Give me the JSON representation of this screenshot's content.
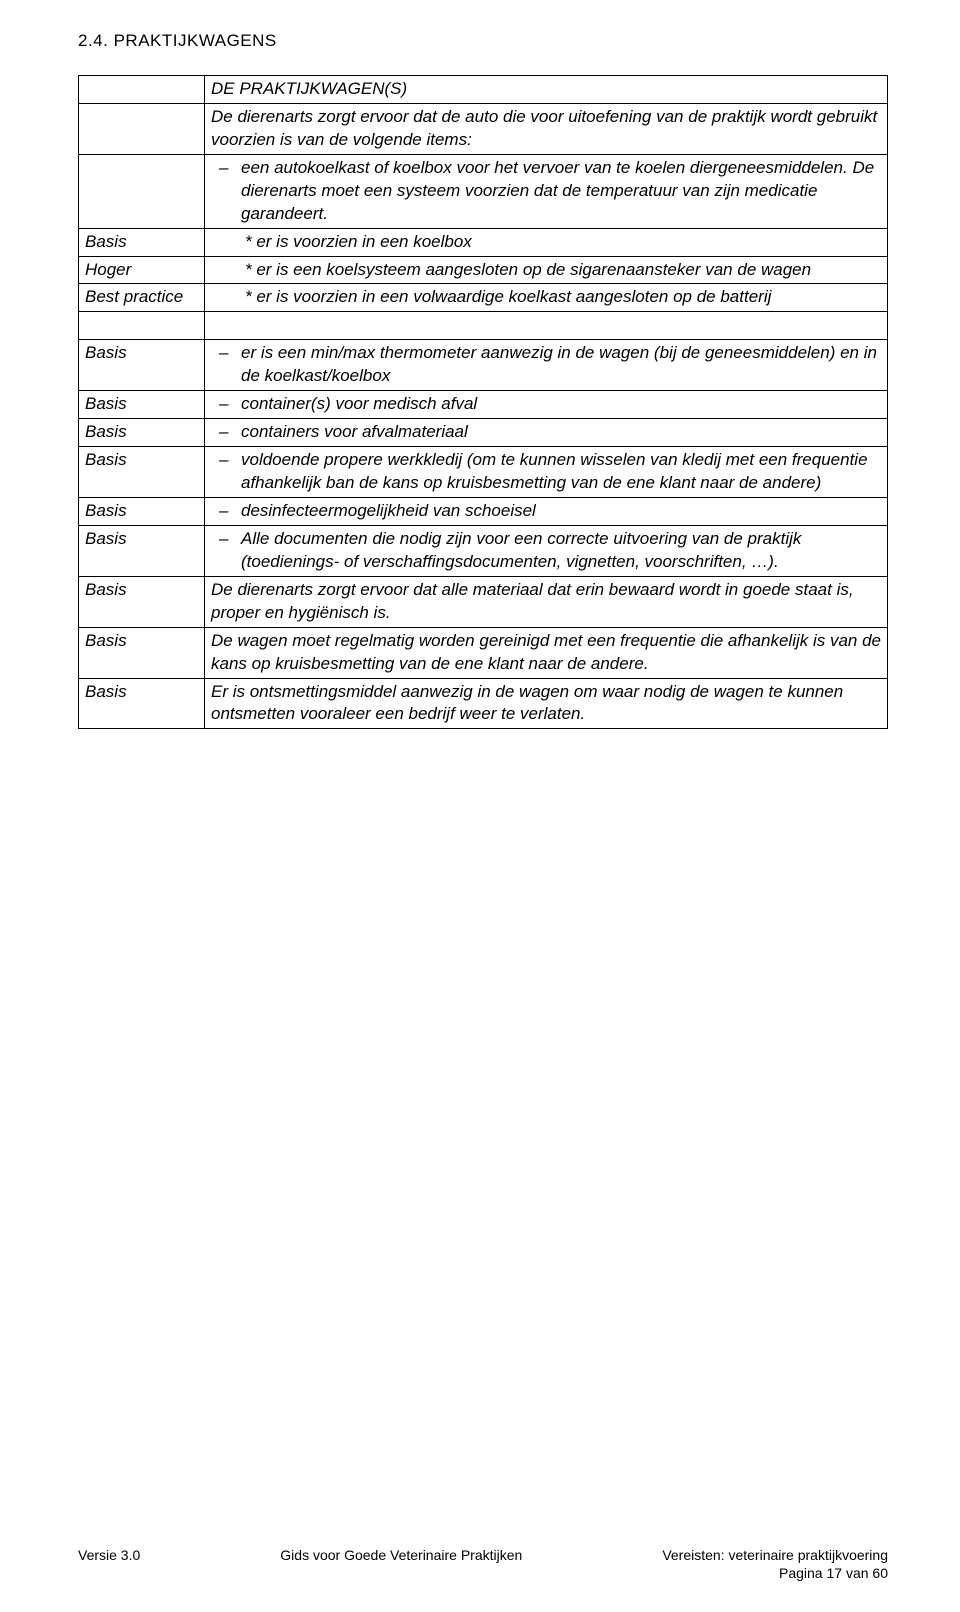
{
  "heading": "2.4. PRAKTIJKWAGENS",
  "rows": [
    {
      "label": "",
      "content": "DE PRAKTIJKWAGEN(S)",
      "style": "no-indent"
    },
    {
      "label": "",
      "content": "De dierenarts zorgt ervoor dat de auto die voor uitoefening van de praktijk wordt gebruikt voorzien is van de volgende items:",
      "style": "no-indent"
    },
    {
      "label": "",
      "content": "een autokoelkast of koelbox voor het vervoer van te koelen diergeneesmiddelen. De dierenarts moet een systeem voorzien dat de temperatuur van zijn medicatie garandeert.",
      "style": "dash"
    },
    {
      "label": "Basis",
      "content": "* er is voorzien in een koelbox",
      "style": "star"
    },
    {
      "label": "Hoger",
      "content": "* er is een koelsysteem aangesloten op de sigarenaansteker van de wagen",
      "style": "star"
    },
    {
      "label": "Best practice",
      "content": "* er is voorzien in een volwaardige koelkast aangesloten op de batterij",
      "style": "star"
    },
    {
      "label": "",
      "content": "",
      "style": "spacer"
    },
    {
      "label": "Basis",
      "content": "er is een min/max thermometer aanwezig in de wagen (bij de geneesmiddelen) en in de koelkast/koelbox",
      "style": "dash"
    },
    {
      "label": "Basis",
      "content": "container(s) voor medisch afval",
      "style": "dash"
    },
    {
      "label": "Basis",
      "content": "containers voor afvalmateriaal",
      "style": "dash"
    },
    {
      "label": "Basis",
      "content": "voldoende propere werkkledij (om te kunnen wisselen van kledij met een frequentie afhankelijk ban de kans op kruisbesmetting van de ene klant naar de andere)",
      "style": "dash"
    },
    {
      "label": "Basis",
      "content": "desinfecteermogelijkheid van schoeisel",
      "style": "dash"
    },
    {
      "label": "Basis",
      "content": "Alle documenten die nodig zijn voor een correcte uitvoering van de praktijk (toedienings- of verschaffingsdocumenten, vignetten, voorschriften, …).",
      "style": "dash"
    },
    {
      "label": "Basis",
      "content": "De dierenarts zorgt ervoor dat alle materiaal dat erin bewaard wordt in goede staat is, proper en hygiënisch is.",
      "style": "no-indent"
    },
    {
      "label": "Basis",
      "content": "De wagen moet regelmatig worden gereinigd met een frequentie die afhankelijk is van de kans op kruisbesmetting van de ene klant naar de andere.",
      "style": "no-indent"
    },
    {
      "label": "Basis",
      "content": "Er is ontsmettingsmiddel aanwezig in de wagen om waar nodig de wagen te kunnen ontsmetten vooraleer een bedrijf weer te verlaten.",
      "style": "no-indent"
    }
  ],
  "footer": {
    "left": "Versie 3.0",
    "center": "Gids voor Goede Veterinaire Praktijken",
    "right_line1": "Vereisten: veterinaire praktijkvoering",
    "right_line2": "Pagina 17 van 60"
  }
}
